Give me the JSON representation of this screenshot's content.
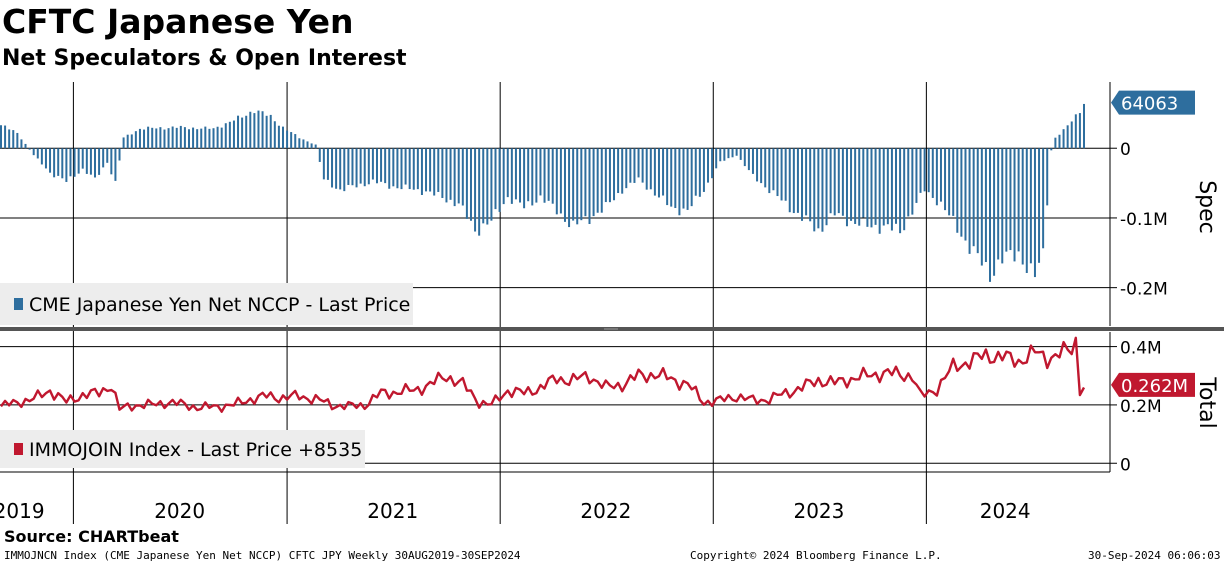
{
  "header": {
    "title": "CFTC Japanese Yen",
    "subtitle": "Net Speculators & Open Interest"
  },
  "footer": {
    "source": "Source: CHARTbeat",
    "description": "IMMOJNCN Index (CME Japanese Yen Net NCCP) CFTC JPY  Weekly 30AUG2019-30SEP2024",
    "copyright": "Copyright© 2024 Bloomberg Finance L.P.",
    "timestamp": "30-Sep-2024 06:06:03"
  },
  "colors": {
    "spec_bar": "#2e6e9e",
    "total_line": "#c0182f",
    "grid": "#000000",
    "legend_bg": "#ededed",
    "divider": "#555555"
  },
  "chart_data": [
    {
      "type": "bar",
      "panel": "top",
      "axis_label": "Spec",
      "legend": "CME Japanese Yen Net NCCP - Last Price",
      "last_value_label": "64063",
      "y_tick_labels": [
        "0",
        "-0.1M",
        "-0.2M"
      ],
      "y_ticks": [
        0,
        -100000,
        -200000
      ],
      "ylim": [
        -255000,
        95000
      ],
      "x_start": "2019-08-30",
      "x_end": "2024-09-27",
      "frequency": "weekly",
      "anchors": [
        [
          "2019-08-30",
          33000
        ],
        [
          "2019-09-27",
          22000
        ],
        [
          "2019-10-25",
          -10000
        ],
        [
          "2019-11-22",
          -35000
        ],
        [
          "2019-12-20",
          -48000
        ],
        [
          "2020-01-17",
          -30000
        ],
        [
          "2020-02-07",
          -45000
        ],
        [
          "2020-02-28",
          -20000
        ],
        [
          "2020-03-13",
          -50000
        ],
        [
          "2020-03-27",
          15000
        ],
        [
          "2020-04-24",
          28000
        ],
        [
          "2020-06-26",
          30000
        ],
        [
          "2020-08-28",
          28000
        ],
        [
          "2020-10-16",
          45000
        ],
        [
          "2020-11-06",
          55000
        ],
        [
          "2020-12-04",
          45000
        ],
        [
          "2020-12-25",
          30000
        ],
        [
          "2021-01-22",
          15000
        ],
        [
          "2021-02-19",
          5000
        ],
        [
          "2021-03-05",
          -45000
        ],
        [
          "2021-04-02",
          -60000
        ],
        [
          "2021-05-28",
          -48000
        ],
        [
          "2021-07-02",
          -55000
        ],
        [
          "2021-08-27",
          -62000
        ],
        [
          "2021-10-22",
          -80000
        ],
        [
          "2021-11-19",
          -118000
        ],
        [
          "2021-12-17",
          -105000
        ],
        [
          "2022-01-14",
          -70000
        ],
        [
          "2022-02-11",
          -85000
        ],
        [
          "2022-03-11",
          -70000
        ],
        [
          "2022-04-08",
          -90000
        ],
        [
          "2022-05-06",
          -112000
        ],
        [
          "2022-06-03",
          -100000
        ],
        [
          "2022-07-01",
          -85000
        ],
        [
          "2022-07-29",
          -60000
        ],
        [
          "2022-08-26",
          -45000
        ],
        [
          "2022-09-23",
          -65000
        ],
        [
          "2022-10-21",
          -85000
        ],
        [
          "2022-11-18",
          -90000
        ],
        [
          "2022-12-16",
          -60000
        ],
        [
          "2023-01-13",
          -20000
        ],
        [
          "2023-02-10",
          -10000
        ],
        [
          "2023-03-10",
          -40000
        ],
        [
          "2023-04-07",
          -60000
        ],
        [
          "2023-05-05",
          -80000
        ],
        [
          "2023-06-02",
          -100000
        ],
        [
          "2023-06-30",
          -118000
        ],
        [
          "2023-07-28",
          -95000
        ],
        [
          "2023-08-25",
          -105000
        ],
        [
          "2023-09-22",
          -112000
        ],
        [
          "2023-10-20",
          -112000
        ],
        [
          "2023-11-17",
          -120000
        ],
        [
          "2023-12-08",
          -90000
        ],
        [
          "2023-12-29",
          -60000
        ],
        [
          "2024-01-26",
          -80000
        ],
        [
          "2024-02-23",
          -115000
        ],
        [
          "2024-03-22",
          -150000
        ],
        [
          "2024-04-19",
          -180000
        ],
        [
          "2024-05-10",
          -160000
        ],
        [
          "2024-06-07",
          -150000
        ],
        [
          "2024-06-28",
          -180000
        ],
        [
          "2024-07-05",
          -185000
        ],
        [
          "2024-07-19",
          -150000
        ],
        [
          "2024-07-26",
          -75000
        ],
        [
          "2024-08-02",
          -3000
        ],
        [
          "2024-08-09",
          15000
        ],
        [
          "2024-08-23",
          25000
        ],
        [
          "2024-09-06",
          40000
        ],
        [
          "2024-09-20",
          55000
        ],
        [
          "2024-09-27",
          64063
        ]
      ]
    },
    {
      "type": "line",
      "panel": "bottom",
      "axis_label": "Total",
      "legend": "IMMOJOIN Index - Last Price +8535",
      "last_value_label": "0.262M",
      "y_tick_labels": [
        "0.4M",
        "0.2M",
        "0"
      ],
      "y_ticks": [
        400000,
        200000,
        0
      ],
      "ylim": [
        -30000,
        450000
      ],
      "x_start": "2019-08-30",
      "x_end": "2024-09-27",
      "frequency": "weekly",
      "anchors": [
        [
          "2019-08-30",
          195000
        ],
        [
          "2019-09-27",
          210000
        ],
        [
          "2019-10-25",
          220000
        ],
        [
          "2019-11-22",
          250000
        ],
        [
          "2019-12-20",
          210000
        ],
        [
          "2020-01-17",
          235000
        ],
        [
          "2020-02-14",
          240000
        ],
        [
          "2020-03-06",
          270000
        ],
        [
          "2020-03-20",
          185000
        ],
        [
          "2020-04-17",
          200000
        ],
        [
          "2020-05-15",
          200000
        ],
        [
          "2020-06-12",
          210000
        ],
        [
          "2020-07-10",
          200000
        ],
        [
          "2020-08-07",
          190000
        ],
        [
          "2020-09-04",
          195000
        ],
        [
          "2020-10-02",
          200000
        ],
        [
          "2020-10-30",
          220000
        ],
        [
          "2020-11-27",
          230000
        ],
        [
          "2020-12-25",
          225000
        ],
        [
          "2021-01-22",
          230000
        ],
        [
          "2021-02-19",
          220000
        ],
        [
          "2021-03-19",
          200000
        ],
        [
          "2021-04-16",
          195000
        ],
        [
          "2021-05-14",
          200000
        ],
        [
          "2021-06-11",
          240000
        ],
        [
          "2021-07-09",
          245000
        ],
        [
          "2021-08-06",
          250000
        ],
        [
          "2021-09-03",
          270000
        ],
        [
          "2021-10-01",
          300000
        ],
        [
          "2021-10-29",
          270000
        ],
        [
          "2021-11-26",
          210000
        ],
        [
          "2021-12-17",
          200000
        ],
        [
          "2022-01-14",
          250000
        ],
        [
          "2022-02-11",
          240000
        ],
        [
          "2022-03-11",
          260000
        ],
        [
          "2022-04-08",
          290000
        ],
        [
          "2022-05-06",
          285000
        ],
        [
          "2022-06-03",
          300000
        ],
        [
          "2022-07-01",
          260000
        ],
        [
          "2022-07-29",
          270000
        ],
        [
          "2022-08-26",
          300000
        ],
        [
          "2022-09-23",
          305000
        ],
        [
          "2022-10-21",
          290000
        ],
        [
          "2022-11-18",
          270000
        ],
        [
          "2022-12-16",
          210000
        ],
        [
          "2023-01-13",
          215000
        ],
        [
          "2023-02-10",
          230000
        ],
        [
          "2023-03-10",
          215000
        ],
        [
          "2023-04-07",
          220000
        ],
        [
          "2023-05-05",
          240000
        ],
        [
          "2023-06-02",
          260000
        ],
        [
          "2023-06-30",
          285000
        ],
        [
          "2023-07-28",
          275000
        ],
        [
          "2023-08-25",
          290000
        ],
        [
          "2023-09-22",
          300000
        ],
        [
          "2023-10-20",
          310000
        ],
        [
          "2023-11-17",
          305000
        ],
        [
          "2023-12-08",
          300000
        ],
        [
          "2023-12-22",
          230000
        ],
        [
          "2024-01-19",
          255000
        ],
        [
          "2024-02-16",
          330000
        ],
        [
          "2024-03-15",
          350000
        ],
        [
          "2024-04-12",
          370000
        ],
        [
          "2024-05-10",
          365000
        ],
        [
          "2024-06-07",
          350000
        ],
        [
          "2024-07-05",
          380000
        ],
        [
          "2024-07-26",
          360000
        ],
        [
          "2024-08-16",
          375000
        ],
        [
          "2024-09-06",
          390000
        ],
        [
          "2024-09-13",
          420000
        ],
        [
          "2024-09-20",
          255000
        ],
        [
          "2024-09-27",
          262000
        ]
      ]
    }
  ],
  "x_axis": {
    "year_labels": [
      {
        "label": "2019",
        "center": "2019-09-30"
      },
      {
        "label": "2020",
        "center": "2020-07-01"
      },
      {
        "label": "2021",
        "center": "2021-07-01"
      },
      {
        "label": "2022",
        "center": "2022-07-01"
      },
      {
        "label": "2023",
        "center": "2023-07-01"
      },
      {
        "label": "2024",
        "center": "2024-05-15"
      }
    ],
    "year_boundaries": [
      "2020-01-01",
      "2021-01-01",
      "2022-01-01",
      "2023-01-01",
      "2024-01-01"
    ]
  }
}
